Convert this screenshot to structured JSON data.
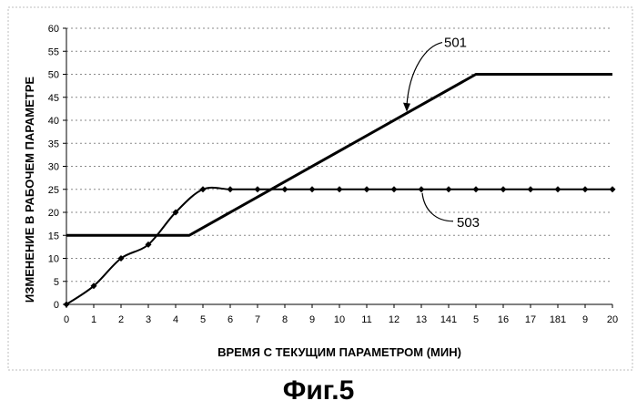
{
  "figure_caption": "Фиг.5",
  "chart_data": {
    "type": "line",
    "title": "",
    "xlabel": "ВРЕМЯ С ТЕКУЩИМ ПАРАМЕТРОМ (МИН)",
    "ylabel": "ИЗМЕНЕНИЕ В РАБОЧЕМ ПАРАМЕТРЕ",
    "x_tick_labels": [
      "0",
      "1",
      "2",
      "3",
      "4",
      "5",
      "6",
      "7",
      "8",
      "9",
      "10",
      "11",
      "12",
      "13",
      "141",
      "5",
      "16",
      "17",
      "181",
      "9",
      "20"
    ],
    "xlim": [
      0,
      20
    ],
    "ylim": [
      0,
      60
    ],
    "y_ticks": [
      0,
      5,
      10,
      15,
      20,
      25,
      30,
      35,
      40,
      45,
      50,
      55,
      60
    ],
    "grid": "horizontal dashed",
    "series": [
      {
        "name": "501",
        "style": "thick line, no markers",
        "x": [
          0,
          4.5,
          15,
          20
        ],
        "y": [
          15,
          15,
          50,
          50
        ]
      },
      {
        "name": "503",
        "style": "line with diamond markers",
        "x": [
          0,
          1,
          2,
          3,
          4,
          5,
          6,
          7,
          8,
          9,
          10,
          11,
          12,
          13,
          14,
          15,
          16,
          17,
          18,
          19,
          20
        ],
        "y": [
          0,
          4,
          10,
          13,
          20,
          25,
          25,
          25,
          25,
          25,
          25,
          25,
          25,
          25,
          25,
          25,
          25,
          25,
          25,
          25,
          25
        ]
      }
    ],
    "annotations": [
      {
        "label": "501",
        "series": "501",
        "at_x": 12.5
      },
      {
        "label": "503",
        "series": "503",
        "at_x": 12.5
      }
    ],
    "colors": {
      "line": "#000000",
      "grid": "#8a8a8a"
    }
  }
}
